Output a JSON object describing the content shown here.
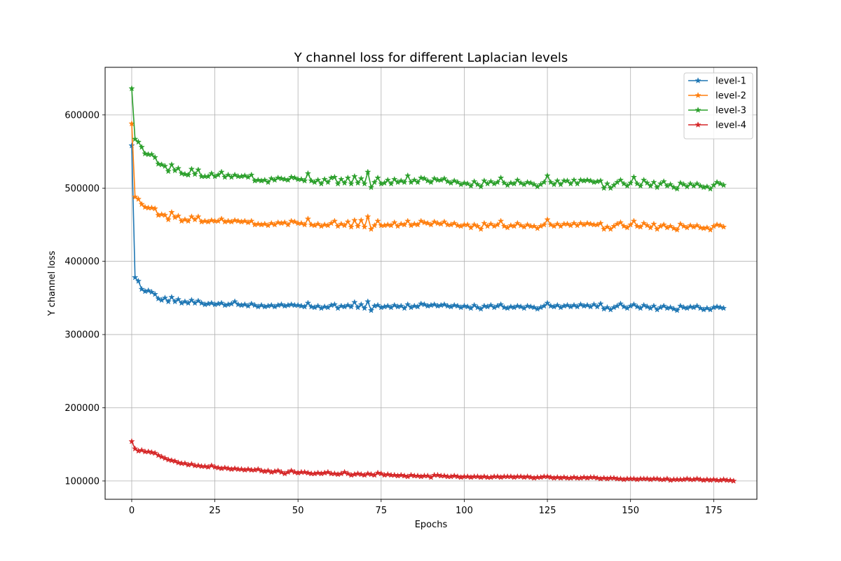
{
  "chart_data": {
    "type": "line",
    "title": "Y channel loss for different Laplacian levels",
    "xlabel": "Epochs",
    "ylabel": "Y channel loss",
    "xlim": [
      -8,
      188
    ],
    "ylim": [
      75000,
      665000
    ],
    "xticks": [
      0,
      25,
      50,
      75,
      100,
      125,
      150,
      175
    ],
    "yticks": [
      100000,
      200000,
      300000,
      400000,
      500000,
      600000
    ],
    "grid": true,
    "legend_position": "top-right",
    "marker": "star",
    "series": [
      {
        "name": "level-1",
        "color": "#1f77b4",
        "values": [
          558000,
          378000,
          373000,
          362000,
          359000,
          360000,
          358000,
          355000,
          349000,
          347000,
          350000,
          345000,
          351000,
          345000,
          348000,
          343000,
          345000,
          343000,
          347000,
          343000,
          346000,
          343000,
          341000,
          342000,
          343000,
          341000,
          342000,
          343000,
          340000,
          341000,
          342000,
          345000,
          341000,
          340000,
          341000,
          339000,
          342000,
          340000,
          338000,
          340000,
          338000,
          339000,
          340000,
          338000,
          340000,
          341000,
          339000,
          340000,
          341000,
          340000,
          340000,
          339000,
          338000,
          343000,
          338000,
          337000,
          339000,
          336000,
          338000,
          337000,
          340000,
          341000,
          336000,
          339000,
          338000,
          340000,
          338000,
          344000,
          337000,
          341000,
          336000,
          345000,
          333000,
          339000,
          340000,
          337000,
          338000,
          339000,
          337000,
          340000,
          338000,
          339000,
          336000,
          341000,
          337000,
          339000,
          338000,
          342000,
          341000,
          339000,
          340000,
          341000,
          339000,
          340000,
          341000,
          339000,
          338000,
          340000,
          339000,
          337000,
          339000,
          338000,
          336000,
          340000,
          337000,
          335000,
          339000,
          338000,
          340000,
          337000,
          339000,
          341000,
          337000,
          336000,
          338000,
          337000,
          339000,
          338000,
          336000,
          339000,
          338000,
          337000,
          335000,
          337000,
          339000,
          343000,
          339000,
          338000,
          340000,
          337000,
          339000,
          340000,
          338000,
          340000,
          338000,
          341000,
          339000,
          340000,
          338000,
          341000,
          338000,
          342000,
          335000,
          337000,
          334000,
          337000,
          339000,
          342000,
          338000,
          336000,
          339000,
          341000,
          338000,
          336000,
          340000,
          338000,
          336000,
          339000,
          334000,
          337000,
          339000,
          336000,
          337000,
          335000,
          333000,
          339000,
          337000,
          336000,
          338000,
          337000,
          339000,
          336000,
          334000,
          336000,
          334000,
          337000,
          338000,
          337000,
          336000
        ]
      },
      {
        "name": "level-2",
        "color": "#ff7f0e",
        "values": [
          588000,
          488000,
          485000,
          478000,
          474000,
          473000,
          473000,
          472000,
          463000,
          464000,
          463000,
          457000,
          467000,
          460000,
          462000,
          455000,
          457000,
          455000,
          461000,
          457000,
          461000,
          454000,
          455000,
          454000,
          456000,
          455000,
          455000,
          458000,
          454000,
          455000,
          454000,
          456000,
          455000,
          454000,
          455000,
          453000,
          455000,
          450000,
          451000,
          450000,
          451000,
          449000,
          452000,
          450000,
          453000,
          452000,
          453000,
          450000,
          455000,
          454000,
          452000,
          452000,
          450000,
          458000,
          450000,
          449000,
          451000,
          448000,
          450000,
          449000,
          452000,
          455000,
          448000,
          451000,
          449000,
          454000,
          447000,
          456000,
          448000,
          456000,
          447000,
          461000,
          444000,
          449000,
          455000,
          449000,
          449000,
          450000,
          449000,
          453000,
          448000,
          451000,
          450000,
          455000,
          449000,
          451000,
          450000,
          455000,
          453000,
          452000,
          450000,
          454000,
          452000,
          451000,
          454000,
          450000,
          450000,
          452000,
          449000,
          448000,
          450000,
          450000,
          446000,
          450000,
          448000,
          444000,
          452000,
          448000,
          451000,
          448000,
          450000,
          455000,
          448000,
          446000,
          449000,
          448000,
          452000,
          449000,
          447000,
          450000,
          448000,
          448000,
          445000,
          448000,
          450000,
          457000,
          450000,
          448000,
          451000,
          448000,
          451000,
          451000,
          449000,
          452000,
          449000,
          452000,
          450000,
          452000,
          451000,
          450000,
          450000,
          452000,
          444000,
          447000,
          444000,
          448000,
          451000,
          453000,
          448000,
          446000,
          450000,
          455000,
          448000,
          447000,
          452000,
          449000,
          446000,
          451000,
          444000,
          448000,
          450000,
          446000,
          448000,
          445000,
          443000,
          451000,
          448000,
          446000,
          449000,
          447000,
          449000,
          446000,
          445000,
          446000,
          443000,
          448000,
          450000,
          449000,
          447000
        ]
      },
      {
        "name": "level-3",
        "color": "#2ca02c",
        "values": [
          636000,
          567000,
          563000,
          556000,
          547000,
          546000,
          546000,
          542000,
          533000,
          532000,
          530000,
          523000,
          532000,
          524000,
          527000,
          520000,
          519000,
          518000,
          526000,
          519000,
          525000,
          516000,
          516000,
          516000,
          520000,
          516000,
          518000,
          522000,
          515000,
          518000,
          515000,
          518000,
          516000,
          516000,
          517000,
          515000,
          518000,
          510000,
          511000,
          510000,
          511000,
          508000,
          513000,
          511000,
          514000,
          513000,
          512000,
          511000,
          515000,
          514000,
          512000,
          512000,
          510000,
          520000,
          510000,
          508000,
          511000,
          506000,
          512000,
          508000,
          514000,
          515000,
          506000,
          512000,
          507000,
          514000,
          506000,
          516000,
          507000,
          513000,
          506000,
          522000,
          501000,
          508000,
          514000,
          506000,
          507000,
          511000,
          506000,
          512000,
          508000,
          510000,
          508000,
          517000,
          508000,
          511000,
          508000,
          514000,
          513000,
          510000,
          508000,
          513000,
          511000,
          511000,
          513000,
          509000,
          507000,
          510000,
          508000,
          505000,
          507000,
          506000,
          503000,
          509000,
          505000,
          502000,
          510000,
          506000,
          509000,
          506000,
          508000,
          514000,
          507000,
          504000,
          507000,
          506000,
          511000,
          507000,
          505000,
          508000,
          507000,
          505000,
          502000,
          505000,
          508000,
          517000,
          508000,
          505000,
          510000,
          505000,
          510000,
          510000,
          506000,
          511000,
          506000,
          511000,
          510000,
          511000,
          510000,
          508000,
          509000,
          510000,
          500000,
          506000,
          500000,
          504000,
          508000,
          511000,
          506000,
          503000,
          507000,
          515000,
          506000,
          503000,
          511000,
          507000,
          503000,
          508000,
          501000,
          506000,
          509000,
          503000,
          505000,
          501000,
          499000,
          507000,
          505000,
          502000,
          506000,
          503000,
          506000,
          503000,
          501000,
          502000,
          499000,
          504000,
          508000,
          506000,
          504000
        ]
      },
      {
        "name": "level-4",
        "color": "#d62728",
        "values": [
          154000,
          144000,
          141000,
          142000,
          140000,
          140000,
          139000,
          138000,
          135000,
          133000,
          131000,
          129000,
          128000,
          127000,
          125000,
          124000,
          124000,
          122000,
          123000,
          121000,
          121000,
          120000,
          120000,
          119000,
          121000,
          119000,
          118000,
          117000,
          118000,
          117000,
          116000,
          117000,
          116000,
          116000,
          115000,
          116000,
          115000,
          115000,
          116000,
          114000,
          113000,
          114000,
          112000,
          113000,
          114000,
          112000,
          110000,
          112000,
          114000,
          112000,
          111000,
          112000,
          112000,
          111000,
          110000,
          110000,
          111000,
          110000,
          111000,
          112000,
          110000,
          110000,
          109000,
          110000,
          112000,
          110000,
          108000,
          109000,
          110000,
          109000,
          108000,
          110000,
          109000,
          108000,
          111000,
          110000,
          108000,
          109000,
          108000,
          108000,
          107000,
          108000,
          107000,
          106000,
          108000,
          107000,
          107000,
          106000,
          107000,
          107000,
          105000,
          108000,
          108000,
          107000,
          107000,
          106000,
          106000,
          107000,
          106000,
          105000,
          106000,
          106000,
          105000,
          106000,
          106000,
          105000,
          106000,
          105000,
          105000,
          106000,
          106000,
          105000,
          106000,
          106000,
          106000,
          105000,
          106000,
          106000,
          105000,
          106000,
          105000,
          104000,
          105000,
          105000,
          106000,
          106000,
          105000,
          104000,
          105000,
          104000,
          105000,
          104000,
          104000,
          105000,
          104000,
          104000,
          105000,
          104000,
          105000,
          105000,
          104000,
          103000,
          104000,
          103000,
          104000,
          104000,
          103000,
          103000,
          102000,
          103000,
          103000,
          103000,
          102000,
          103000,
          103000,
          103000,
          102000,
          103000,
          103000,
          102000,
          102000,
          103000,
          101000,
          102000,
          102000,
          102000,
          102000,
          103000,
          102000,
          102000,
          103000,
          102000,
          101000,
          102000,
          101000,
          102000,
          101000,
          101000,
          102000,
          101000,
          101000,
          100000
        ]
      }
    ]
  }
}
